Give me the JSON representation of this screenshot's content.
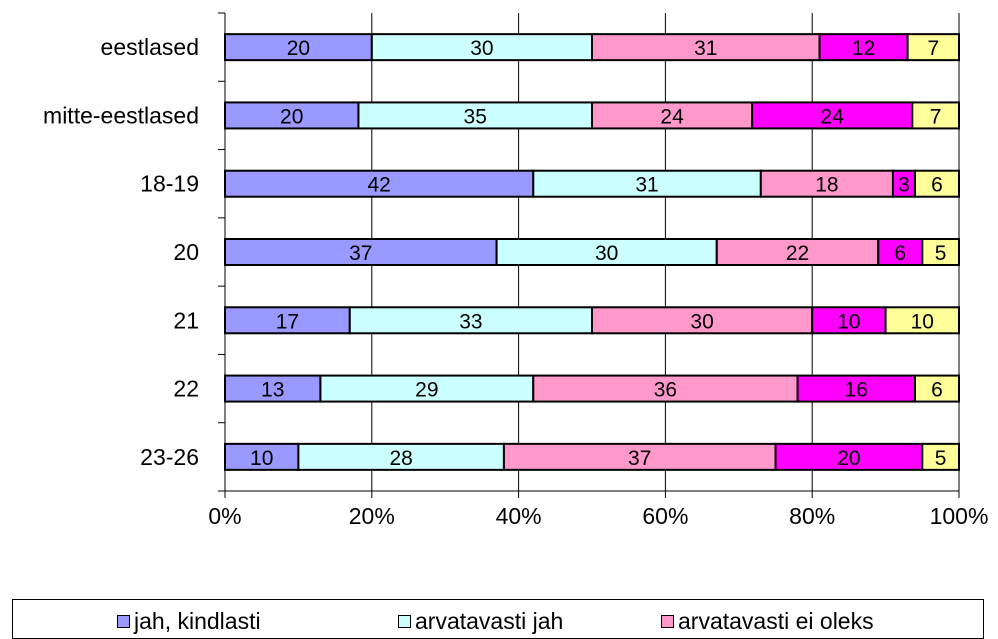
{
  "chart_data": {
    "type": "bar",
    "orientation": "horizontal",
    "stacked": "percent",
    "categories": [
      "eestlased",
      "mitte-eestlased",
      "18-19",
      "20",
      "21",
      "22",
      "23-26"
    ],
    "series": [
      {
        "name": "jah, kindlasti",
        "color": "#9999ff",
        "values": [
          20,
          20,
          42,
          37,
          17,
          13,
          10
        ]
      },
      {
        "name": "arvatavasti jah",
        "color": "#ccffff",
        "values": [
          30,
          35,
          31,
          30,
          33,
          29,
          28
        ]
      },
      {
        "name": "arvatavasti ei oleks",
        "color": "#ff99cc",
        "values": [
          31,
          24,
          18,
          22,
          30,
          36,
          37
        ]
      },
      {
        "name": "",
        "color": "#ff00ff",
        "values": [
          12,
          24,
          3,
          6,
          10,
          16,
          20
        ]
      },
      {
        "name": "",
        "color": "#ffff99",
        "values": [
          7,
          7,
          6,
          5,
          10,
          6,
          5
        ]
      }
    ],
    "x_ticks": [
      "0%",
      "20%",
      "40%",
      "60%",
      "80%",
      "100%"
    ],
    "xlim": [
      0,
      100
    ],
    "grid": "vertical",
    "legend": "bottom"
  }
}
